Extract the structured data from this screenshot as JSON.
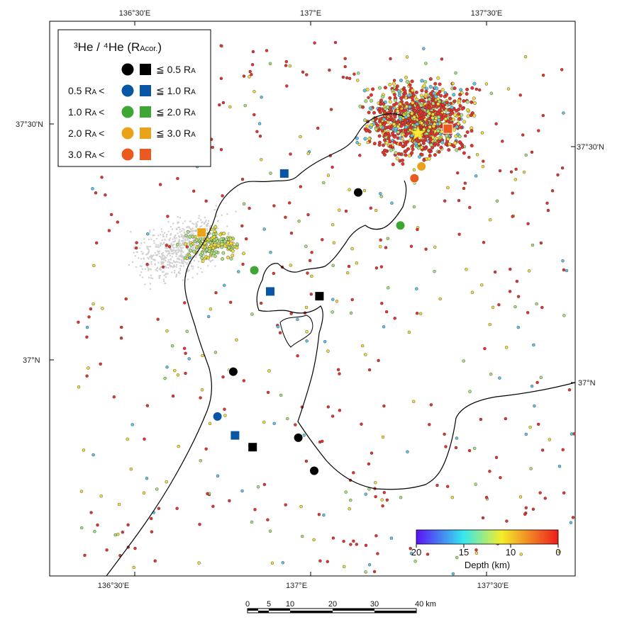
{
  "map": {
    "ticks_top": [
      "136°30'E",
      "137°E",
      "137°30'E"
    ],
    "ticks_bottom": [
      "136°30'E",
      "137°E",
      "137°30'E"
    ],
    "ticks_left": [
      "37°30'N",
      "37°N"
    ],
    "ticks_right": [
      "37°30'N",
      "37°N"
    ]
  },
  "legend": {
    "title_prefix": "³He / ⁴He (R",
    "title_sub": "Acor.",
    "title_suffix": ")",
    "unit_main": "R",
    "unit_sub": "A",
    "rows": [
      {
        "left": "",
        "op": "≦",
        "value": "0.5",
        "color": "#000000"
      },
      {
        "left": "0.5",
        "op": "≦",
        "value": "1.0",
        "color": "#0a56a6"
      },
      {
        "left": "1.0",
        "op": "≦",
        "value": "2.0",
        "color": "#3fa534"
      },
      {
        "left": "2.0",
        "op": "≦",
        "value": "3.0",
        "color": "#eaa21a"
      },
      {
        "left": "3.0",
        "op": "",
        "value": "",
        "color": "#ea5a1e"
      }
    ],
    "lt": "<"
  },
  "colorbar": {
    "label": "Depth (km)",
    "ticks": [
      "20",
      "15",
      "10",
      "0"
    ],
    "colors": [
      "#5b12f5",
      "#34e7ef",
      "#f4ee2a",
      "#ee1c1c"
    ]
  },
  "scalebar": {
    "labels": [
      "0",
      "5",
      "10",
      "20",
      "30",
      "40 km"
    ]
  },
  "stations": [
    {
      "shape": "circle",
      "lon": 137.135,
      "lat": 37.355,
      "color": "#000000"
    },
    {
      "shape": "square",
      "lon": 137.025,
      "lat": 37.135,
      "color": "#000000"
    },
    {
      "shape": "circle",
      "lon": 136.78,
      "lat": 36.975,
      "color": "#000000"
    },
    {
      "shape": "circle",
      "lon": 136.965,
      "lat": 36.835,
      "color": "#000000"
    },
    {
      "shape": "square",
      "lon": 136.835,
      "lat": 36.815,
      "color": "#000000"
    },
    {
      "shape": "circle",
      "lon": 137.01,
      "lat": 36.765,
      "color": "#000000"
    },
    {
      "shape": "square",
      "lon": 136.925,
      "lat": 37.395,
      "color": "#0a56a6"
    },
    {
      "shape": "square",
      "lon": 136.885,
      "lat": 37.145,
      "color": "#0a56a6"
    },
    {
      "shape": "circle",
      "lon": 136.735,
      "lat": 36.88,
      "color": "#0a56a6"
    },
    {
      "shape": "square",
      "lon": 136.785,
      "lat": 36.84,
      "color": "#0a56a6"
    },
    {
      "shape": "circle",
      "lon": 137.255,
      "lat": 37.285,
      "color": "#3fa534"
    },
    {
      "shape": "circle",
      "lon": 136.84,
      "lat": 37.19,
      "color": "#3fa534"
    },
    {
      "shape": "square",
      "lon": 136.69,
      "lat": 37.27,
      "color": "#eaa21a"
    },
    {
      "shape": "circle",
      "lon": 137.315,
      "lat": 37.41,
      "color": "#eaa21a"
    },
    {
      "shape": "circle",
      "lon": 137.295,
      "lat": 37.385,
      "color": "#ea5a1e"
    },
    {
      "shape": "square",
      "lon": 137.39,
      "lat": 37.49,
      "color": "#ea5a1e"
    }
  ],
  "epicenter": {
    "lon": 137.305,
    "lat": 37.48,
    "color": "#ffe93a"
  }
}
